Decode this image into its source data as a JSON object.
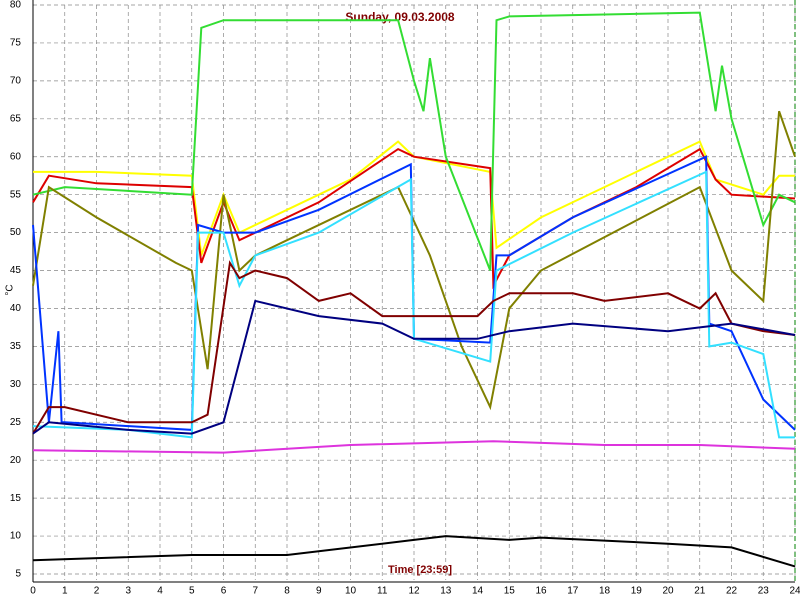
{
  "chart_data": {
    "type": "line",
    "title": "Sunday, 09.03.2008",
    "x_label": "Time [23:59]",
    "y_label": "°C",
    "xlim": [
      0,
      24
    ],
    "ylim": [
      5,
      80
    ],
    "xticks": [
      0,
      1,
      2,
      3,
      4,
      5,
      6,
      7,
      8,
      9,
      10,
      11,
      12,
      13,
      14,
      15,
      16,
      17,
      18,
      19,
      20,
      21,
      22,
      23,
      24
    ],
    "yticks": [
      5,
      10,
      15,
      20,
      25,
      30,
      35,
      40,
      45,
      50,
      55,
      60,
      65,
      70,
      75,
      80
    ],
    "grid": true,
    "series": [
      {
        "name": "yellow",
        "color": "#ffff00",
        "x": [
          0,
          0.5,
          2,
          5,
          5.3,
          6,
          6.5,
          8,
          10,
          11.5,
          12,
          14.4,
          14.6,
          16,
          18,
          21,
          21.5,
          23,
          23.5,
          24
        ],
        "values": [
          58,
          58,
          58,
          57.5,
          47,
          55,
          50,
          53,
          57,
          62,
          60,
          58,
          48,
          52,
          56,
          62,
          57,
          55,
          57.5,
          57.5
        ]
      },
      {
        "name": "red",
        "color": "#dd0000",
        "x": [
          0,
          0.5,
          2,
          5,
          5.3,
          6,
          6.5,
          7,
          9,
          11.5,
          12,
          14.4,
          14.5,
          15,
          17,
          19,
          21,
          21.5,
          22,
          24
        ],
        "values": [
          54,
          57.5,
          56.5,
          56,
          46,
          54,
          49,
          50,
          54,
          61,
          60,
          58.5,
          43,
          47,
          52,
          56,
          61,
          57,
          55,
          54.5
        ]
      },
      {
        "name": "green",
        "color": "#33dd33",
        "x": [
          0,
          1,
          5,
          5.3,
          6,
          11.5,
          12,
          12.3,
          12.5,
          13,
          14.4,
          14.6,
          15,
          21,
          21.5,
          21.7,
          22,
          23,
          23.5,
          24
        ],
        "values": [
          55,
          56,
          55,
          77,
          78,
          78,
          70,
          66,
          73,
          60,
          45,
          78,
          78.5,
          79,
          66,
          72,
          65,
          51,
          55,
          54
        ]
      },
      {
        "name": "olive",
        "color": "#808000",
        "x": [
          0,
          0.5,
          2,
          4.5,
          5,
          5.5,
          6,
          6.5,
          7,
          8,
          11.5,
          12.5,
          13.5,
          14.4,
          15,
          16,
          21,
          22,
          23,
          23.5,
          24
        ],
        "values": [
          43,
          56,
          52,
          46,
          45,
          32,
          55,
          45,
          47,
          49,
          56,
          47,
          35,
          27,
          40,
          45,
          56,
          45,
          41,
          66,
          60
        ]
      },
      {
        "name": "blue",
        "color": "#0033ff",
        "x": [
          0,
          0.5,
          0.8,
          0.9,
          1,
          5,
          5.2,
          6,
          7,
          9,
          11.9,
          12,
          14.4,
          14.6,
          15,
          17,
          21.2,
          21.3,
          22,
          23,
          24
        ],
        "values": [
          51,
          25,
          37,
          25,
          25,
          24,
          51,
          50,
          50,
          53,
          59,
          36,
          35.5,
          47,
          47,
          52,
          60,
          38,
          37,
          28,
          24
        ]
      },
      {
        "name": "cyan",
        "color": "#33e0ff",
        "x": [
          0,
          3,
          5,
          5.2,
          6,
          6.5,
          7,
          9,
          11.9,
          12,
          14.4,
          14.6,
          17,
          21.2,
          21.3,
          22,
          23,
          23.5,
          24
        ],
        "values": [
          24.5,
          24,
          23,
          50,
          50,
          43,
          47,
          50,
          57,
          36,
          33,
          45,
          50,
          58,
          35,
          35.5,
          34,
          23,
          23
        ]
      },
      {
        "name": "maroon",
        "color": "#800000",
        "x": [
          0,
          0.5,
          1,
          3,
          5,
          5.5,
          6.2,
          6.5,
          7,
          8,
          9,
          10,
          11,
          12,
          14,
          14.5,
          15,
          17,
          18,
          20,
          21,
          21.5,
          22,
          23,
          24
        ],
        "values": [
          23.5,
          27,
          27,
          25,
          25,
          26,
          46,
          44,
          45,
          44,
          41,
          42,
          39,
          39,
          39,
          41,
          42,
          42,
          41,
          42,
          40,
          42,
          38,
          37,
          36.5
        ]
      },
      {
        "name": "navy",
        "color": "#000080",
        "x": [
          0,
          0.5,
          3,
          5,
          6,
          7,
          9,
          11,
          12,
          14,
          15,
          17,
          20,
          21,
          22,
          24
        ],
        "values": [
          23.5,
          25,
          24,
          23.5,
          25,
          41,
          39,
          38,
          36,
          36,
          37,
          38,
          37,
          37.5,
          38,
          36.5
        ]
      },
      {
        "name": "magenta",
        "color": "#dd33dd",
        "x": [
          0,
          6,
          10,
          14.5,
          18,
          21,
          24
        ],
        "values": [
          21.3,
          21,
          22,
          22.5,
          22,
          22,
          21.5
        ]
      },
      {
        "name": "black",
        "color": "#000000",
        "x": [
          0,
          5,
          8,
          12,
          13,
          15,
          16,
          20,
          22,
          24
        ],
        "values": [
          6.8,
          7.5,
          7.5,
          9.5,
          10,
          9.5,
          9.8,
          9,
          8.5,
          6
        ]
      }
    ]
  }
}
